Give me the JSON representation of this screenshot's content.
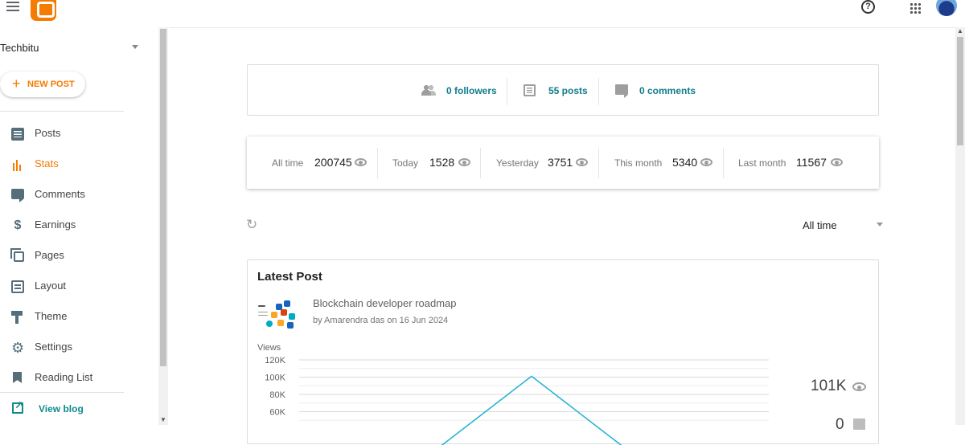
{
  "header": {
    "icons": [
      "menu-icon",
      "blogger-logo",
      "help-icon",
      "apps-icon",
      "avatar"
    ],
    "help_glyph": "?"
  },
  "sidebar": {
    "blog_name": "Techbitu",
    "new_post_label": "NEW POST",
    "items": [
      {
        "label": "Posts",
        "icon": "posts-icon",
        "active": false
      },
      {
        "label": "Stats",
        "icon": "stats-icon",
        "active": true
      },
      {
        "label": "Comments",
        "icon": "comments-icon",
        "active": false
      },
      {
        "label": "Earnings",
        "icon": "earnings-icon",
        "active": false
      },
      {
        "label": "Pages",
        "icon": "pages-icon",
        "active": false
      },
      {
        "label": "Layout",
        "icon": "layout-icon",
        "active": false
      },
      {
        "label": "Theme",
        "icon": "theme-icon",
        "active": false
      },
      {
        "label": "Settings",
        "icon": "settings-icon",
        "active": false
      },
      {
        "label": "Reading List",
        "icon": "reading-list-icon",
        "active": false
      }
    ],
    "view_blog_label": "View blog"
  },
  "summary": {
    "followers": "0 followers",
    "posts": "55 posts",
    "comments": "0 comments"
  },
  "views": [
    {
      "label": "All time",
      "value": "200745"
    },
    {
      "label": "Today",
      "value": "1528"
    },
    {
      "label": "Yesterday",
      "value": "3751"
    },
    {
      "label": "This month",
      "value": "5340"
    },
    {
      "label": "Last month",
      "value": "11567"
    }
  ],
  "range_select": {
    "value": "All time"
  },
  "latest_post": {
    "heading": "Latest Post",
    "title": "Blockchain developer roadmap",
    "byline": "by Amarendra das on 16 Jun 2024",
    "total_views": "101K",
    "total_comments": "0"
  },
  "colors": {
    "accent": "#f57c00",
    "link": "#0f7d8c",
    "chart_line": "#29b6d1"
  },
  "chart_data": {
    "type": "line",
    "ylabel": "Views",
    "y_ticks": [
      "120K",
      "100K",
      "80K",
      "60K"
    ],
    "ylim": [
      60000,
      120000
    ],
    "series": [
      {
        "values": [
          0,
          101000,
          0
        ]
      }
    ]
  }
}
